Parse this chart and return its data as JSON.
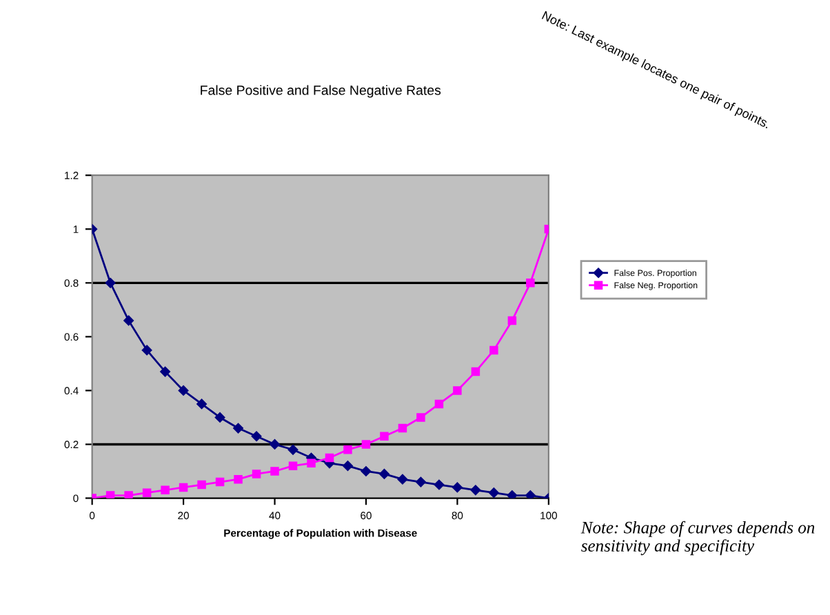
{
  "chart_data": {
    "type": "line",
    "title": "False Positive and False Negative Rates",
    "xlabel": "Percentage of Population with Disease",
    "x": [
      0,
      4,
      8,
      12,
      16,
      20,
      24,
      28,
      32,
      36,
      40,
      44,
      48,
      52,
      56,
      60,
      64,
      68,
      72,
      76,
      80,
      84,
      88,
      92,
      96,
      100
    ],
    "series": [
      {
        "name": "False Pos. Proportion",
        "color": "#000080",
        "marker": "diamond",
        "values": [
          1,
          0.8,
          0.66,
          0.55,
          0.47,
          0.4,
          0.35,
          0.3,
          0.26,
          0.23,
          0.2,
          0.18,
          0.15,
          0.13,
          0.12,
          0.1,
          0.09,
          0.07,
          0.06,
          0.05,
          0.04,
          0.03,
          0.02,
          0.01,
          0.01,
          0
        ]
      },
      {
        "name": "False Neg. Proportion",
        "color": "#ff00ff",
        "marker": "square",
        "values": [
          0,
          0.01,
          0.01,
          0.02,
          0.03,
          0.04,
          0.05,
          0.06,
          0.07,
          0.09,
          0.1,
          0.12,
          0.13,
          0.15,
          0.18,
          0.2,
          0.23,
          0.26,
          0.3,
          0.35,
          0.4,
          0.47,
          0.55,
          0.66,
          0.8,
          1
        ]
      }
    ],
    "xlim": [
      0,
      100
    ],
    "xticks": [
      0,
      20,
      40,
      60,
      80,
      100
    ],
    "ylim": [
      0,
      1.2
    ],
    "yticks": [
      0,
      0.2,
      0.4,
      0.6,
      0.8,
      1,
      1.2
    ],
    "ref_lines": [
      {
        "axis": "y",
        "value": 0.2,
        "color": "#000000"
      },
      {
        "axis": "y",
        "value": 0.8,
        "color": "#000000"
      }
    ],
    "grid": false,
    "legend": "right",
    "annotations": [
      "Note: Last example locates one pair of points.",
      "Note: Shape of curves depends on sensitivity and specificity"
    ]
  }
}
